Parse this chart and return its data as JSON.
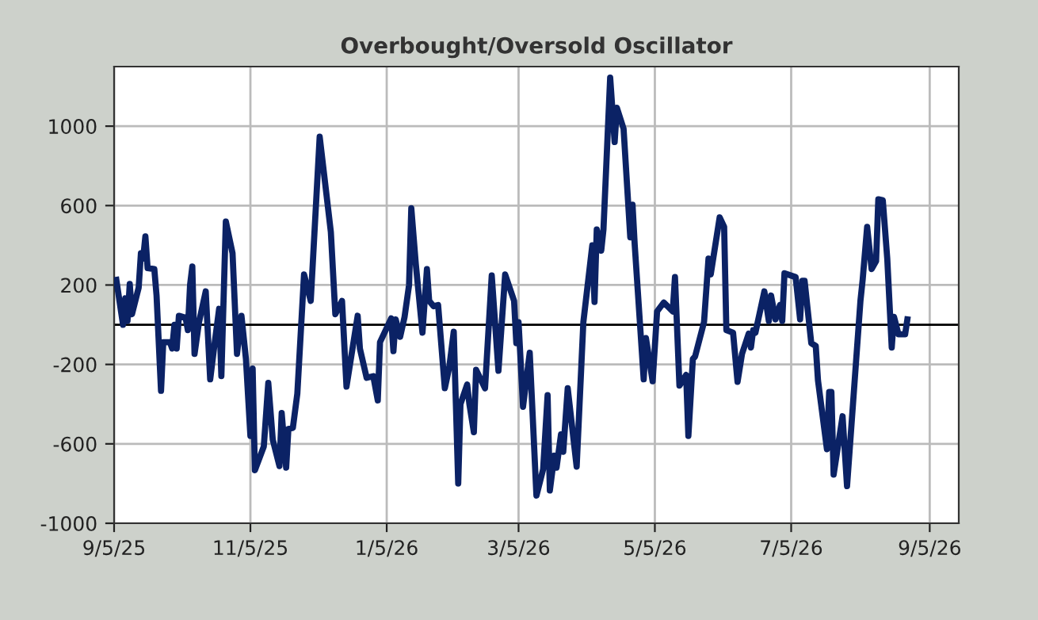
{
  "chart_data": {
    "type": "line",
    "title": "Overbought/Oversold Oscillator",
    "x": [
      "2025-09-06",
      "2025-09-09",
      "2025-09-10",
      "2025-09-11",
      "2025-09-12",
      "2025-09-13",
      "2025-09-16",
      "2025-09-17",
      "2025-09-18",
      "2025-09-19",
      "2025-09-20",
      "2025-09-23",
      "2025-09-24",
      "2025-09-26",
      "2025-09-27",
      "2025-09-30",
      "2025-10-01",
      "2025-10-02",
      "2025-10-03",
      "2025-10-04",
      "2025-10-07",
      "2025-10-08",
      "2025-10-09",
      "2025-10-10",
      "2025-10-11",
      "2025-10-13",
      "2025-10-16",
      "2025-10-18",
      "2025-10-20",
      "2025-10-22",
      "2025-10-23",
      "2025-10-25",
      "2025-10-28",
      "2025-10-30",
      "2025-11-01",
      "2025-11-03",
      "2025-11-05",
      "2025-11-06",
      "2025-11-07",
      "2025-11-11",
      "2025-11-13",
      "2025-11-15",
      "2025-11-18",
      "2025-11-19",
      "2025-11-21",
      "2025-11-22",
      "2025-11-24",
      "2025-11-26",
      "2025-11-29",
      "2025-12-02",
      "2025-12-06",
      "2025-12-11",
      "2025-12-13",
      "2025-12-16",
      "2025-12-18",
      "2025-12-23",
      "2025-12-24",
      "2025-12-27",
      "2025-12-30",
      "2026-01-01",
      "2026-01-02",
      "2026-01-07",
      "2026-01-08",
      "2026-01-09",
      "2026-01-11",
      "2026-01-13",
      "2026-01-15",
      "2026-01-16",
      "2026-01-18",
      "2026-01-21",
      "2026-01-23",
      "2026-01-24",
      "2026-01-26",
      "2026-01-28",
      "2026-01-31",
      "2026-02-02",
      "2026-02-04",
      "2026-02-06",
      "2026-02-07",
      "2026-02-10",
      "2026-02-11",
      "2026-02-13",
      "2026-02-14",
      "2026-02-18",
      "2026-02-21",
      "2026-02-24",
      "2026-02-27",
      "2026-03-03",
      "2026-03-04",
      "2026-03-05",
      "2026-03-07",
      "2026-03-10",
      "2026-03-13",
      "2026-03-16",
      "2026-03-18",
      "2026-03-19",
      "2026-03-21",
      "2026-03-22",
      "2026-03-24",
      "2026-03-25",
      "2026-03-27",
      "2026-03-31",
      "2026-04-03",
      "2026-04-07",
      "2026-04-08",
      "2026-04-09",
      "2026-04-11",
      "2026-04-12",
      "2026-04-15",
      "2026-04-17",
      "2026-04-18",
      "2026-04-21",
      "2026-04-24",
      "2026-04-25",
      "2026-04-26",
      "2026-04-30",
      "2026-05-01",
      "2026-05-04",
      "2026-05-06",
      "2026-05-09",
      "2026-05-13",
      "2026-05-14",
      "2026-05-16",
      "2026-05-19",
      "2026-05-20",
      "2026-05-22",
      "2026-05-23",
      "2026-05-27",
      "2026-05-29",
      "2026-05-30",
      "2026-06-03",
      "2026-06-05",
      "2026-06-06",
      "2026-06-09",
      "2026-06-11",
      "2026-06-13",
      "2026-06-16",
      "2026-06-17",
      "2026-06-18",
      "2026-06-19",
      "2026-06-23",
      "2026-06-25",
      "2026-06-26",
      "2026-06-28",
      "2026-06-30",
      "2026-07-01",
      "2026-07-02",
      "2026-07-07",
      "2026-07-09",
      "2026-07-10",
      "2026-07-11",
      "2026-07-14",
      "2026-07-16",
      "2026-07-17",
      "2026-07-21",
      "2026-07-22",
      "2026-07-23",
      "2026-07-24",
      "2026-07-28",
      "2026-07-30",
      "2026-08-05",
      "2026-08-06",
      "2026-08-08",
      "2026-08-10",
      "2026-08-12",
      "2026-08-13",
      "2026-08-15",
      "2026-08-17",
      "2026-08-19",
      "2026-08-20",
      "2026-08-22",
      "2026-08-25",
      "2026-08-26"
    ],
    "series": [
      {
        "color": "#0b2265",
        "values": [
          226,
          0,
          133,
          19,
          205,
          53,
          187,
          360,
          333,
          445,
          285,
          280,
          147,
          -333,
          -88,
          -88,
          -120,
          0,
          -120,
          45,
          35,
          -27,
          200,
          293,
          -147,
          13,
          168,
          -275,
          -93,
          80,
          -259,
          520,
          360,
          -147,
          45,
          -173,
          -560,
          -221,
          -733,
          -613,
          -293,
          -579,
          -712,
          -445,
          -720,
          -525,
          -520,
          -347,
          253,
          120,
          947,
          467,
          53,
          120,
          -312,
          45,
          -120,
          -267,
          -259,
          -381,
          -88,
          32,
          -133,
          27,
          -61,
          40,
          200,
          587,
          307,
          -40,
          280,
          120,
          93,
          99,
          -320,
          -213,
          -35,
          -800,
          -400,
          -301,
          -400,
          -541,
          -227,
          -320,
          248,
          -232,
          253,
          120,
          -93,
          13,
          -413,
          -141,
          -861,
          -728,
          -355,
          -835,
          -659,
          -720,
          -552,
          -640,
          -320,
          -715,
          13,
          400,
          115,
          480,
          373,
          480,
          1245,
          920,
          1093,
          987,
          440,
          605,
          400,
          -275,
          -67,
          -285,
          67,
          112,
          67,
          240,
          -307,
          -253,
          -560,
          -173,
          -160,
          13,
          333,
          253,
          541,
          493,
          -27,
          -40,
          -288,
          -147,
          -45,
          -115,
          -27,
          -40,
          168,
          19,
          147,
          27,
          99,
          19,
          259,
          240,
          27,
          221,
          221,
          -93,
          -107,
          -280,
          -627,
          -339,
          -339,
          -755,
          -461,
          -813,
          120,
          227,
          493,
          280,
          320,
          632,
          627,
          333,
          -115,
          40,
          -48,
          -48,
          27
        ]
      }
    ],
    "xlim": [
      "2025-09-05",
      "2026-09-18"
    ],
    "xticks": [
      {
        "value": "2025-09-05",
        "label": "9/5/25"
      },
      {
        "value": "2025-11-05",
        "label": "11/5/25"
      },
      {
        "value": "2026-01-05",
        "label": "1/5/26"
      },
      {
        "value": "2026-03-05",
        "label": "3/5/26"
      },
      {
        "value": "2026-05-05",
        "label": "5/5/26"
      },
      {
        "value": "2026-07-05",
        "label": "7/5/26"
      },
      {
        "value": "2026-09-05",
        "label": "9/5/26"
      }
    ],
    "ylim": [
      -1000,
      1300
    ],
    "yticks": [
      -1000,
      -600,
      -200,
      200,
      600,
      1000
    ],
    "ref_lines": [
      {
        "axis": "y",
        "value": 0,
        "color": "#000000"
      }
    ],
    "grid": true,
    "marker": "none",
    "line_style": "solid"
  }
}
